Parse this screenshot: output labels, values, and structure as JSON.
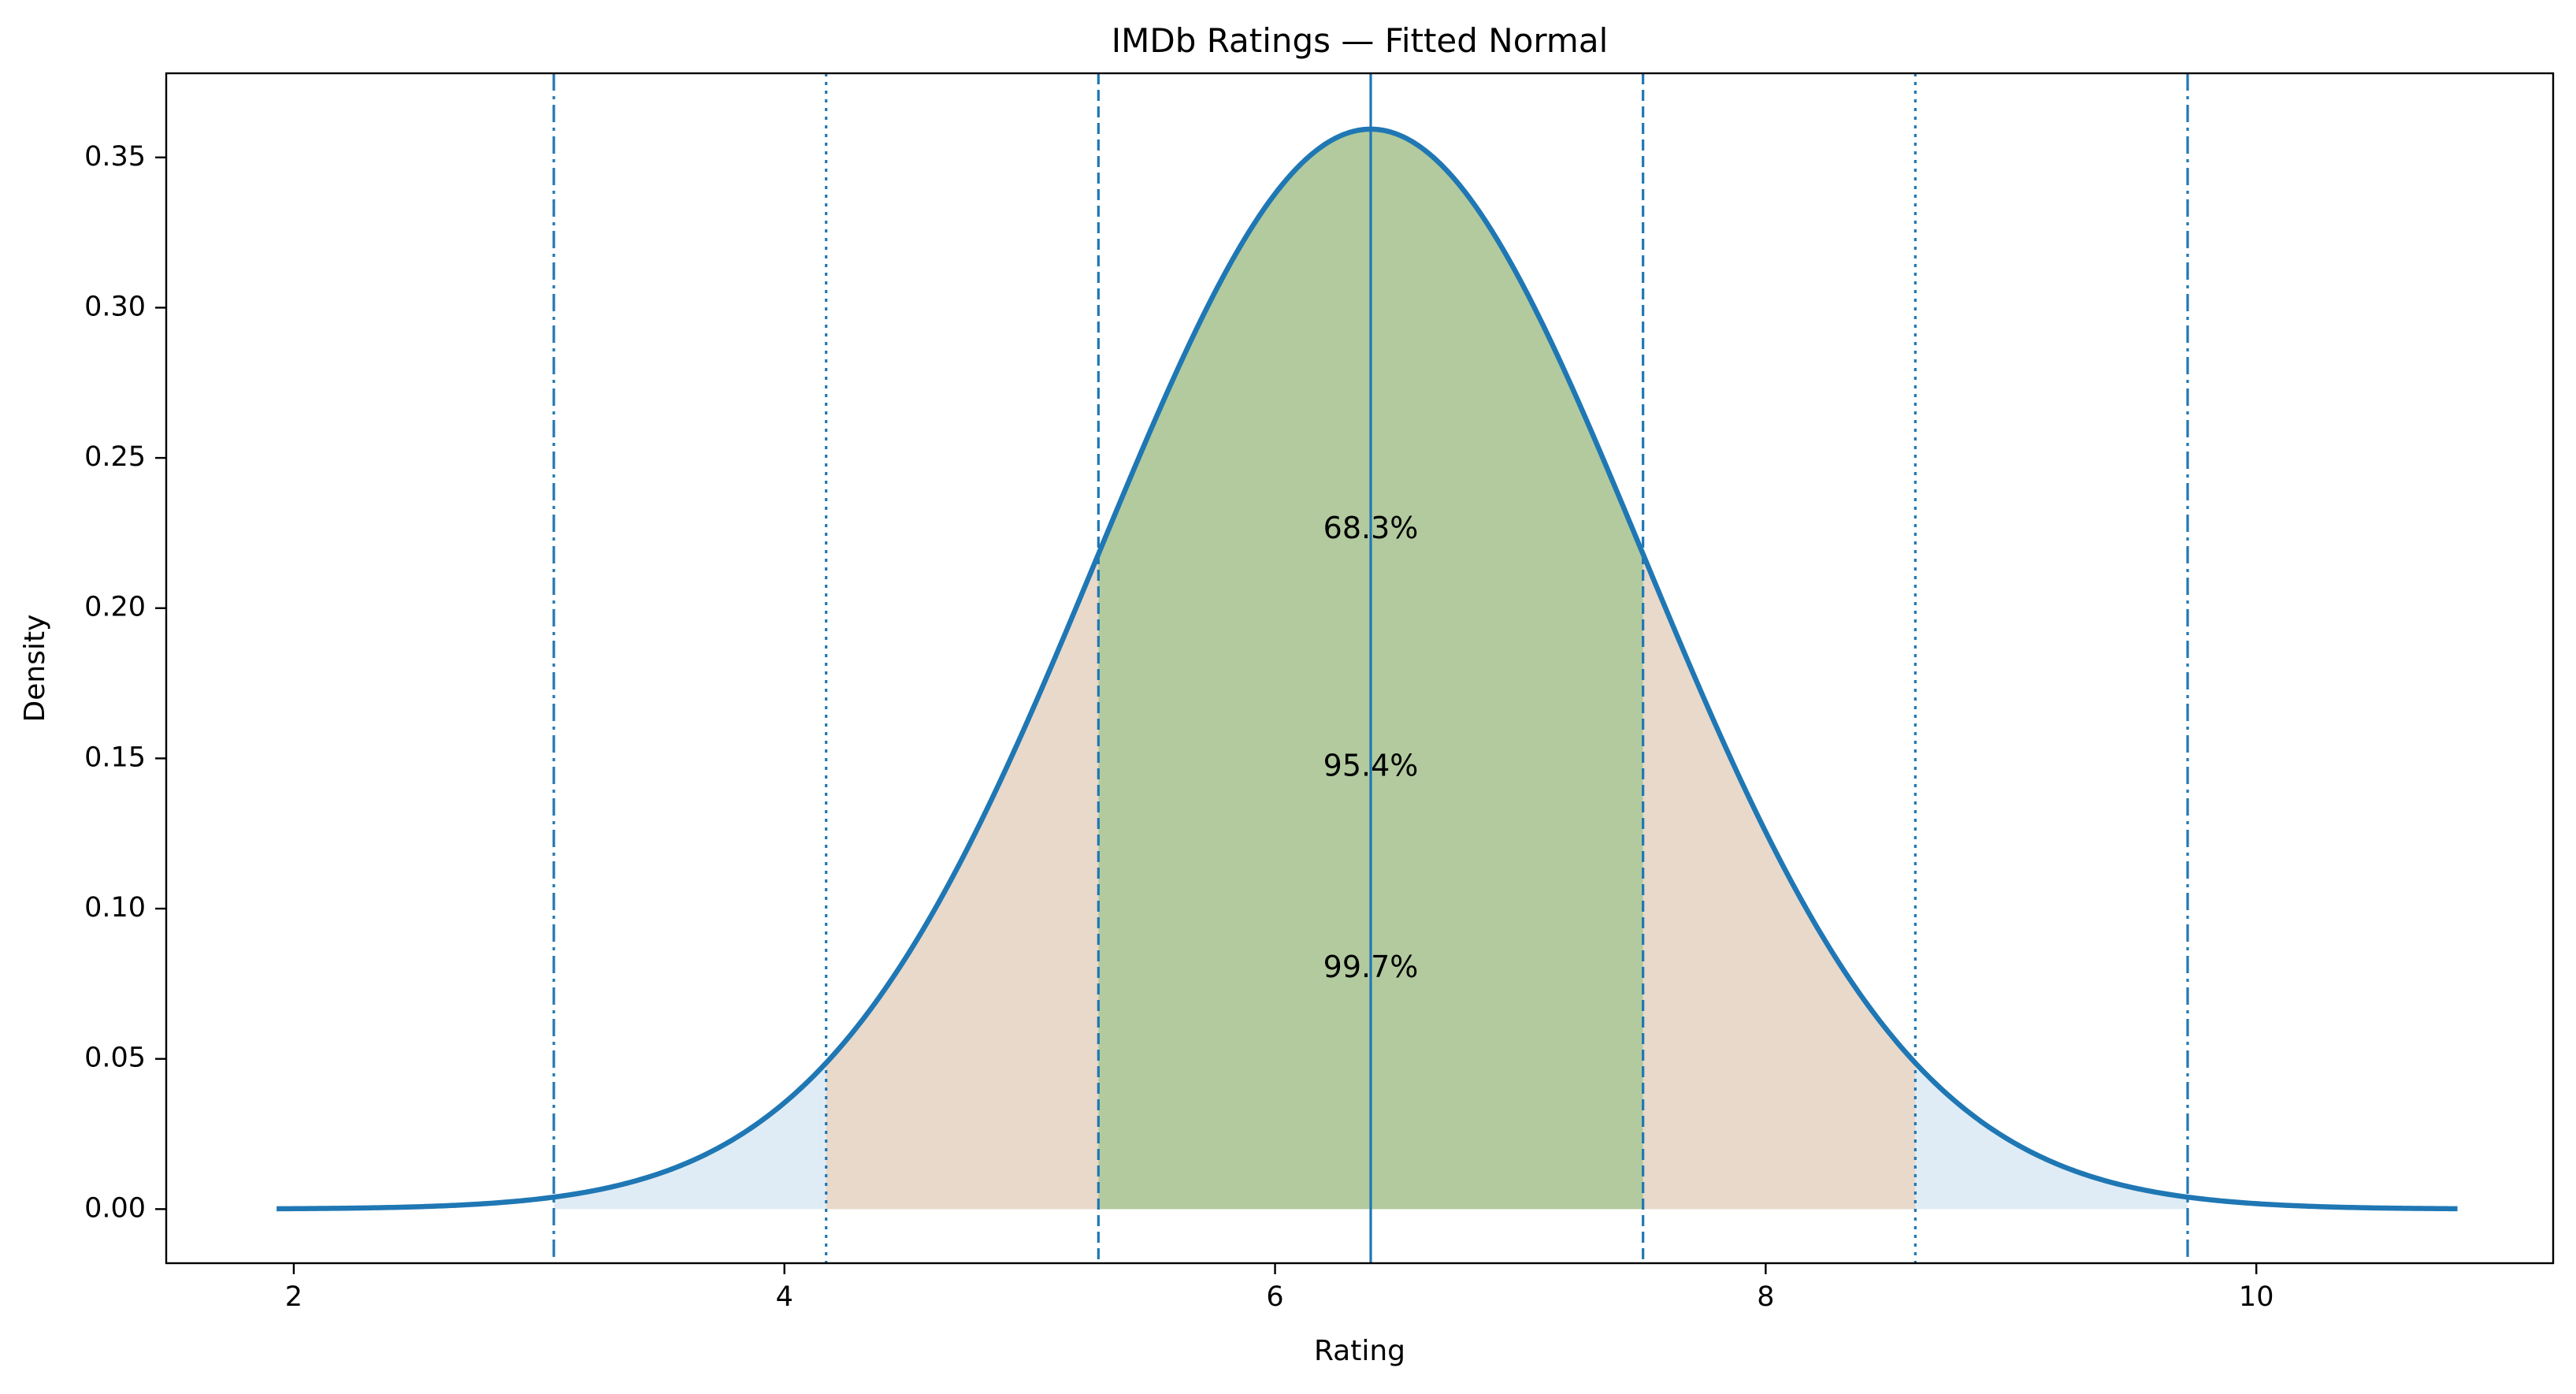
{
  "chart_data": {
    "type": "area",
    "title": "IMDb Ratings — Fitted Normal",
    "xlabel": "Rating",
    "ylabel": "Density",
    "xlim": [
      1.48,
      11.21
    ],
    "ylim": [
      -0.018,
      0.378
    ],
    "x_ticks": [
      2,
      4,
      6,
      8,
      10
    ],
    "y_ticks": [
      0.0,
      0.05,
      0.1,
      0.15,
      0.2,
      0.25,
      0.3,
      0.35
    ],
    "y_tick_labels": [
      "0.00",
      "0.05",
      "0.10",
      "0.15",
      "0.20",
      "0.25",
      "0.30",
      "0.35"
    ],
    "x_tick_labels": [
      "2",
      "4",
      "6",
      "8",
      "10"
    ],
    "grid": false,
    "distribution": {
      "mean": 6.39,
      "std": 1.11,
      "x_start": 1.93,
      "x_end": 10.82
    },
    "bands": [
      {
        "sigma": 3,
        "from": 3.06,
        "to": 9.72,
        "color": "#e0ecf5",
        "label": "99.7%",
        "label_y": 0.08,
        "line_style": "dashdot"
      },
      {
        "sigma": 2,
        "from": 4.17,
        "to": 8.61,
        "color": "#e8d9cb",
        "label": "95.4%",
        "label_y": 0.147,
        "line_style": "dotted"
      },
      {
        "sigma": 1,
        "from": 5.28,
        "to": 7.5,
        "color": "#b2ca9e",
        "label": "68.3%",
        "label_y": 0.226,
        "line_style": "dashed"
      }
    ],
    "mean_line": {
      "x": 6.39,
      "line_style": "solid"
    },
    "curve_color": "#1f77b4",
    "line_color": "#1f77b4"
  }
}
